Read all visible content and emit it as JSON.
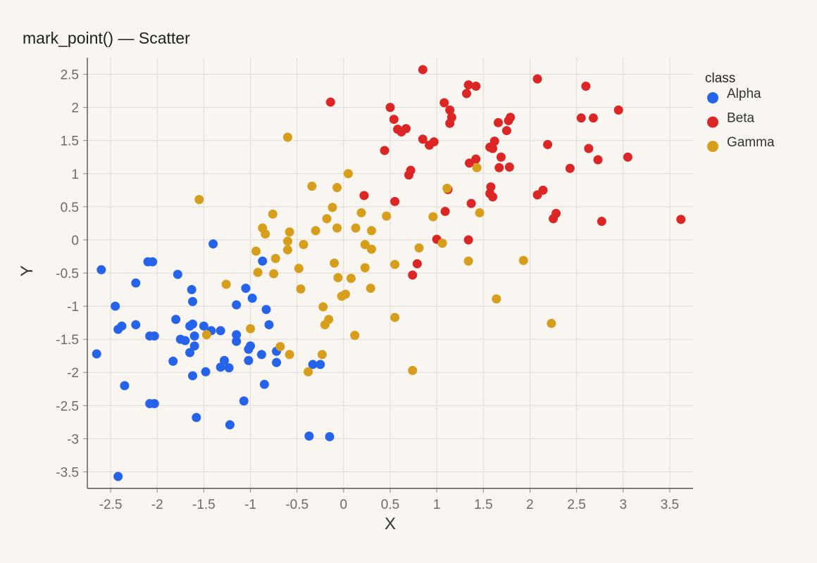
{
  "chart_data": {
    "type": "scatter",
    "title": "mark_point() — Scatter",
    "xlabel": "X",
    "ylabel": "Y",
    "xlim": [
      -2.75,
      3.75
    ],
    "ylim": [
      -3.75,
      2.75
    ],
    "xticks": [
      -2.5,
      -2,
      -1.5,
      -1,
      -0.5,
      0,
      0.5,
      1,
      1.5,
      2,
      2.5,
      3,
      3.5
    ],
    "xtick_labels": [
      "-2.5",
      "-2",
      "-1.5",
      "-1",
      "-0.5",
      "0",
      "0.5",
      "1",
      "1.5",
      "2",
      "2.5",
      "3",
      "3.5"
    ],
    "yticks": [
      2.5,
      2,
      1.5,
      1,
      0.5,
      0,
      -0.5,
      -1,
      -1.5,
      -2,
      -2.5,
      -3,
      -3.5
    ],
    "ytick_labels": [
      "2.5",
      "2",
      "1.5",
      "1",
      "0.5",
      "0",
      "-0.5",
      "-1",
      "-1.5",
      "-2",
      "-2.5",
      "-3",
      "-3.5"
    ],
    "grid": true,
    "legend": {
      "title": "class",
      "placement": "right"
    },
    "series": [
      {
        "name": "Alpha",
        "color": "#2563eb",
        "points": [
          [
            -2.6,
            -0.45
          ],
          [
            -2.45,
            -1.0
          ],
          [
            -2.42,
            -1.35
          ],
          [
            -2.38,
            -1.3
          ],
          [
            -2.23,
            -1.28
          ],
          [
            -2.23,
            -0.65
          ],
          [
            -2.35,
            -2.2
          ],
          [
            -2.65,
            -1.72
          ],
          [
            -2.1,
            -0.33
          ],
          [
            -2.05,
            -0.33
          ],
          [
            -2.08,
            -1.45
          ],
          [
            -2.03,
            -1.45
          ],
          [
            -2.08,
            -2.47
          ],
          [
            -2.03,
            -2.47
          ],
          [
            -2.42,
            -3.57
          ],
          [
            -1.78,
            -0.52
          ],
          [
            -1.8,
            -1.2
          ],
          [
            -1.75,
            -1.5
          ],
          [
            -1.7,
            -1.52
          ],
          [
            -1.65,
            -1.3
          ],
          [
            -1.62,
            -1.27
          ],
          [
            -1.65,
            -1.7
          ],
          [
            -1.63,
            -0.75
          ],
          [
            -1.62,
            -0.93
          ],
          [
            -1.6,
            -1.45
          ],
          [
            -1.6,
            -1.6
          ],
          [
            -1.83,
            -1.83
          ],
          [
            -1.62,
            -2.05
          ],
          [
            -1.5,
            -1.3
          ],
          [
            -1.48,
            -1.99
          ],
          [
            -1.42,
            -1.37
          ],
          [
            -1.4,
            -0.06
          ],
          [
            -1.32,
            -1.92
          ],
          [
            -1.32,
            -1.37
          ],
          [
            -1.28,
            -1.82
          ],
          [
            -1.23,
            -1.93
          ],
          [
            -1.58,
            -2.68
          ],
          [
            -1.22,
            -2.79
          ],
          [
            -1.15,
            -0.98
          ],
          [
            -1.15,
            -1.43
          ],
          [
            -1.15,
            -1.53
          ],
          [
            -1.02,
            -1.82
          ],
          [
            -1.0,
            -1.6
          ],
          [
            -1.02,
            -1.65
          ],
          [
            -1.05,
            -0.73
          ],
          [
            -0.98,
            -0.88
          ],
          [
            -1.07,
            -2.43
          ],
          [
            -0.88,
            -1.73
          ],
          [
            -0.87,
            -0.32
          ],
          [
            -0.83,
            -1.05
          ],
          [
            -0.8,
            -1.28
          ],
          [
            -0.85,
            -2.18
          ],
          [
            -0.72,
            -1.68
          ],
          [
            -0.72,
            -1.85
          ],
          [
            -0.33,
            -1.88
          ],
          [
            -0.25,
            -1.88
          ],
          [
            -0.37,
            -2.96
          ],
          [
            -0.15,
            -2.97
          ]
        ]
      },
      {
        "name": "Beta",
        "color": "#dc2626",
        "points": [
          [
            -0.14,
            2.08
          ],
          [
            0.5,
            2.0
          ],
          [
            0.54,
            1.82
          ],
          [
            0.58,
            1.67
          ],
          [
            0.62,
            1.63
          ],
          [
            0.67,
            1.68
          ],
          [
            0.7,
            0.98
          ],
          [
            0.72,
            1.05
          ],
          [
            0.44,
            1.35
          ],
          [
            0.55,
            0.58
          ],
          [
            0.74,
            -0.53
          ],
          [
            0.79,
            -0.36
          ],
          [
            0.85,
            2.57
          ],
          [
            0.85,
            1.52
          ],
          [
            0.92,
            1.43
          ],
          [
            0.97,
            1.48
          ],
          [
            1.0,
            0.01
          ],
          [
            1.08,
            2.07
          ],
          [
            1.14,
            1.96
          ],
          [
            1.16,
            1.85
          ],
          [
            1.14,
            1.76
          ],
          [
            1.09,
            0.43
          ],
          [
            1.12,
            0.76
          ],
          [
            1.32,
            2.21
          ],
          [
            1.34,
            2.34
          ],
          [
            1.42,
            2.32
          ],
          [
            1.35,
            1.16
          ],
          [
            1.37,
            0.55
          ],
          [
            1.34,
            0.0
          ],
          [
            1.42,
            1.22
          ],
          [
            1.57,
            1.4
          ],
          [
            1.6,
            1.38
          ],
          [
            1.62,
            1.49
          ],
          [
            1.57,
            0.7
          ],
          [
            1.6,
            0.65
          ],
          [
            1.58,
            0.8
          ],
          [
            1.66,
            1.77
          ],
          [
            1.69,
            1.25
          ],
          [
            1.67,
            1.09
          ],
          [
            1.75,
            1.65
          ],
          [
            1.77,
            1.8
          ],
          [
            1.79,
            1.85
          ],
          [
            1.78,
            1.1
          ],
          [
            2.08,
            2.43
          ],
          [
            2.08,
            0.68
          ],
          [
            2.14,
            0.75
          ],
          [
            2.19,
            1.44
          ],
          [
            2.25,
            0.32
          ],
          [
            2.28,
            0.4
          ],
          [
            2.43,
            1.08
          ],
          [
            2.55,
            1.84
          ],
          [
            2.6,
            2.32
          ],
          [
            2.63,
            1.38
          ],
          [
            2.68,
            1.84
          ],
          [
            2.73,
            1.21
          ],
          [
            2.77,
            0.28
          ],
          [
            2.95,
            1.96
          ],
          [
            3.05,
            1.25
          ],
          [
            3.62,
            0.31
          ],
          [
            0.22,
            0.67
          ]
        ]
      },
      {
        "name": "Gamma",
        "color": "#d69e1a",
        "points": [
          [
            -1.55,
            0.61
          ],
          [
            -1.47,
            -1.43
          ],
          [
            -1.26,
            -0.67
          ],
          [
            -1.0,
            -1.34
          ],
          [
            -0.94,
            -0.17
          ],
          [
            -0.92,
            -0.49
          ],
          [
            -0.87,
            0.18
          ],
          [
            -0.84,
            0.09
          ],
          [
            -0.76,
            0.39
          ],
          [
            -0.75,
            -0.51
          ],
          [
            -0.73,
            -0.28
          ],
          [
            -0.68,
            -1.61
          ],
          [
            -0.6,
            1.55
          ],
          [
            -0.6,
            -0.02
          ],
          [
            -0.6,
            -0.15
          ],
          [
            -0.58,
            0.12
          ],
          [
            -0.58,
            -1.73
          ],
          [
            -0.48,
            -0.43
          ],
          [
            -0.46,
            -0.74
          ],
          [
            -0.43,
            -0.07
          ],
          [
            -0.38,
            -1.99
          ],
          [
            -0.34,
            0.81
          ],
          [
            -0.3,
            0.14
          ],
          [
            -0.23,
            -1.73
          ],
          [
            -0.22,
            -1.01
          ],
          [
            -0.2,
            -1.28
          ],
          [
            -0.18,
            0.32
          ],
          [
            -0.16,
            -1.2
          ],
          [
            -0.12,
            0.49
          ],
          [
            -0.1,
            -0.35
          ],
          [
            -0.07,
            0.79
          ],
          [
            -0.07,
            0.18
          ],
          [
            -0.06,
            -0.57
          ],
          [
            -0.02,
            -0.85
          ],
          [
            0.02,
            -0.82
          ],
          [
            0.05,
            1.0
          ],
          [
            0.08,
            -0.58
          ],
          [
            0.12,
            -1.44
          ],
          [
            0.13,
            0.18
          ],
          [
            0.19,
            0.41
          ],
          [
            0.23,
            -0.07
          ],
          [
            0.23,
            -0.42
          ],
          [
            0.3,
            -0.14
          ],
          [
            0.3,
            0.14
          ],
          [
            0.29,
            -0.73
          ],
          [
            0.46,
            0.36
          ],
          [
            0.55,
            -0.37
          ],
          [
            0.55,
            -1.17
          ],
          [
            0.74,
            -1.97
          ],
          [
            0.81,
            -0.12
          ],
          [
            0.96,
            0.35
          ],
          [
            1.06,
            -0.05
          ],
          [
            1.11,
            0.78
          ],
          [
            1.34,
            -0.32
          ],
          [
            1.43,
            1.09
          ],
          [
            1.46,
            0.41
          ],
          [
            1.64,
            -0.89
          ],
          [
            1.93,
            -0.31
          ],
          [
            2.23,
            -1.26
          ]
        ]
      }
    ]
  }
}
